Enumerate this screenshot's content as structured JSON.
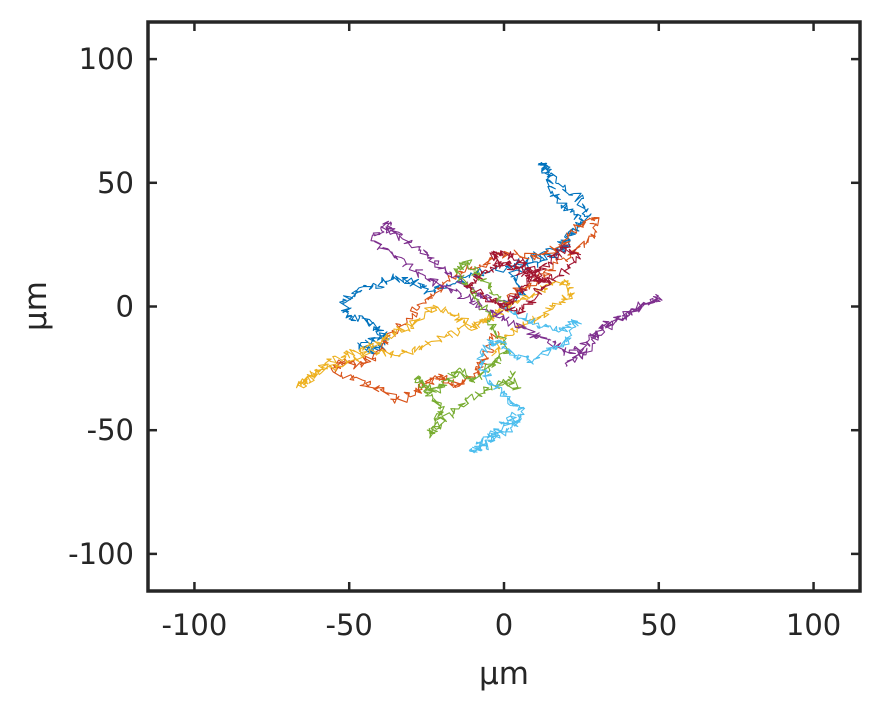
{
  "chart_data": {
    "type": "line",
    "title": "",
    "xlabel": "μm",
    "ylabel": "μm",
    "xlim": [
      -115,
      115
    ],
    "ylim": [
      -115,
      115
    ],
    "xticks": [
      -100,
      -50,
      0,
      50,
      100
    ],
    "yticks": [
      -100,
      -50,
      0,
      50,
      100
    ],
    "xtick_labels": [
      "-100",
      "-50",
      "0",
      "50",
      "100"
    ],
    "ytick_labels": [
      "-100",
      "-50",
      "0",
      "50",
      "100"
    ],
    "grid": false,
    "legend": "none",
    "series": [
      {
        "color": "#0072BD",
        "x": [
          0,
          6,
          3,
          12,
          18,
          22,
          25,
          20,
          16,
          14,
          12,
          16,
          24,
          28,
          22,
          18,
          10,
          2,
          -8,
          -16,
          -24,
          -30,
          -36,
          -42,
          -48,
          -52,
          -50,
          -44,
          -40,
          -38,
          -42,
          -46,
          -40
        ],
        "y": [
          0,
          6,
          14,
          18,
          22,
          28,
          34,
          40,
          46,
          54,
          58,
          52,
          44,
          36,
          30,
          24,
          20,
          16,
          14,
          10,
          6,
          10,
          12,
          8,
          6,
          2,
          -4,
          -6,
          -10,
          -14,
          -18,
          -16,
          -12
        ]
      },
      {
        "color": "#D95319",
        "x": [
          0,
          4,
          10,
          16,
          22,
          28,
          30,
          24,
          18,
          10,
          2,
          -6,
          -14,
          -20,
          -26,
          -32,
          -38,
          -42,
          -48,
          -52,
          -55,
          -46,
          -40,
          -34,
          -28,
          -24,
          -20,
          -16,
          -12,
          -8,
          -6,
          -2
        ],
        "y": [
          0,
          6,
          10,
          16,
          22,
          28,
          36,
          32,
          24,
          20,
          22,
          18,
          14,
          8,
          2,
          -6,
          -14,
          -20,
          -24,
          -22,
          -26,
          -30,
          -34,
          -38,
          -34,
          -30,
          -28,
          -32,
          -30,
          -26,
          -20,
          -10
        ]
      },
      {
        "color": "#EDB120",
        "x": [
          0,
          -4,
          -10,
          -16,
          -22,
          -28,
          -34,
          -40,
          -46,
          -52,
          -58,
          -62,
          -66,
          -64,
          -58,
          -50,
          -42,
          -34,
          -26,
          -18,
          -10,
          -4,
          2,
          8,
          14,
          20,
          22,
          18,
          12,
          6,
          0,
          -4
        ],
        "y": [
          0,
          -4,
          -8,
          -4,
          0,
          -6,
          -10,
          -14,
          -18,
          -20,
          -24,
          -28,
          -32,
          -30,
          -26,
          -22,
          -18,
          -20,
          -16,
          -12,
          -8,
          -4,
          0,
          4,
          8,
          10,
          6,
          2,
          -4,
          -8,
          -12,
          -20
        ]
      },
      {
        "color": "#7E2F8E",
        "x": [
          0,
          -6,
          -12,
          -18,
          -24,
          -30,
          -36,
          -38,
          -42,
          -36,
          -28,
          -22,
          -16,
          -10,
          -4,
          2,
          8,
          14,
          20,
          26,
          30,
          36,
          42,
          48,
          50,
          44,
          38,
          32,
          28,
          24,
          20
        ],
        "y": [
          0,
          4,
          8,
          14,
          20,
          26,
          30,
          34,
          28,
          20,
          14,
          10,
          6,
          2,
          -2,
          -6,
          -10,
          -14,
          -18,
          -20,
          -12,
          -6,
          -2,
          2,
          4,
          0,
          -4,
          -8,
          -12,
          -18,
          -24
        ]
      },
      {
        "color": "#77AC30",
        "x": [
          0,
          -4,
          -8,
          -12,
          -16,
          -10,
          -6,
          -2,
          2,
          -2,
          -6,
          -10,
          -14,
          -18,
          -22,
          -26,
          -28,
          -24,
          -20,
          -22,
          -24,
          -18,
          -12,
          -6,
          0,
          4,
          2
        ],
        "y": [
          0,
          6,
          12,
          18,
          14,
          6,
          -2,
          -10,
          -18,
          -22,
          -26,
          -30,
          -26,
          -30,
          -34,
          -32,
          -28,
          -36,
          -42,
          -48,
          -52,
          -44,
          -38,
          -34,
          -30,
          -34,
          -26
        ]
      },
      {
        "color": "#4DBEEE",
        "x": [
          0,
          6,
          12,
          18,
          24,
          20,
          14,
          8,
          4,
          0,
          -4,
          -8,
          -6,
          -2,
          2,
          6,
          4,
          -2,
          -6,
          -10,
          -6,
          0,
          4
        ],
        "y": [
          0,
          -4,
          -8,
          -10,
          -6,
          -14,
          -18,
          -22,
          -20,
          -16,
          -14,
          -20,
          -28,
          -34,
          -38,
          -42,
          -48,
          -52,
          -56,
          -58,
          -54,
          -48,
          -44
        ]
      },
      {
        "color": "#A2142F",
        "x": [
          0,
          4,
          8,
          12,
          16,
          20,
          24,
          20,
          14,
          8,
          2,
          -4,
          -8,
          -12,
          -6,
          0,
          6,
          10,
          14,
          8,
          2,
          -4,
          0,
          6,
          10,
          12
        ],
        "y": [
          0,
          4,
          10,
          16,
          20,
          24,
          20,
          14,
          10,
          14,
          18,
          16,
          12,
          8,
          4,
          0,
          -2,
          4,
          10,
          12,
          16,
          20,
          22,
          18,
          14,
          10
        ]
      }
    ]
  }
}
